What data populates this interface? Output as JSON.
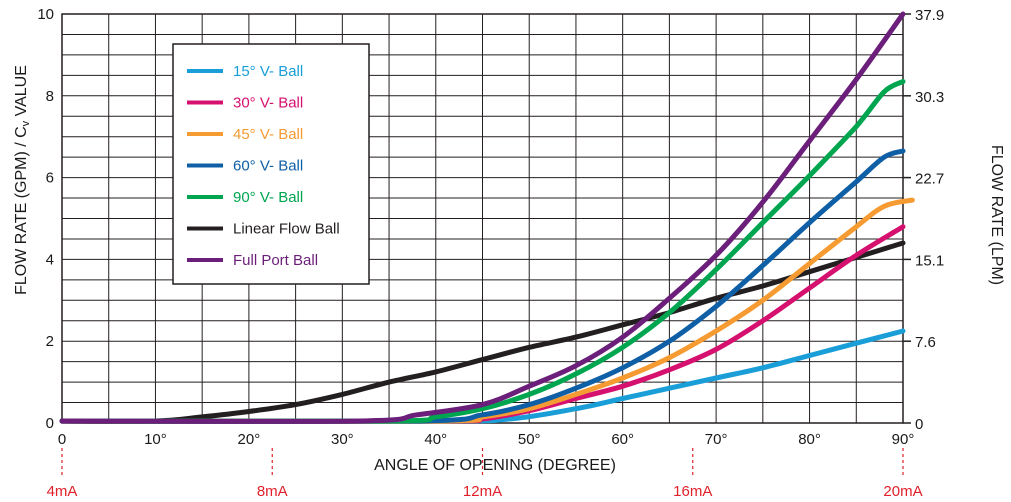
{
  "chart_data": {
    "type": "line",
    "xlabel": "ANGLE OF OPENING (DEGREE)",
    "ylabel": "FLOW RATE (GPM) / Cv VALUE",
    "ylabel_prefix": "FLOW RATE (GPM) / C",
    "ylabel_sub": "v",
    "ylabel_suffix": " VALUE",
    "y2label": "FLOW RATE (LPM)",
    "xlim": [
      0,
      90
    ],
    "ylim": [
      0,
      10
    ],
    "grid": true,
    "legend_position": "top-left",
    "x_ticks": [
      "0",
      "10°",
      "20°",
      "30°",
      "40°",
      "50°",
      "60°",
      "70°",
      "80°",
      "90°"
    ],
    "y_ticks": [
      "0",
      "2",
      "4",
      "6",
      "8",
      "10"
    ],
    "y2_ticks": [
      "0",
      "7.6",
      "15.1",
      "22.7",
      "30.3",
      "37.9"
    ],
    "y2_tick_values": [
      0,
      2,
      4,
      6,
      8,
      10
    ],
    "ma_labels": [
      {
        "label": "4mA",
        "x": 0
      },
      {
        "label": "8mA",
        "x": 22.5
      },
      {
        "label": "12mA",
        "x": 45
      },
      {
        "label": "16mA",
        "x": 67.5
      },
      {
        "label": "20mA",
        "x": 90
      }
    ],
    "series": [
      {
        "name": "15° V- Ball",
        "color": "#1a9ed8",
        "points": [
          [
            0,
            0.05
          ],
          [
            40,
            0.05
          ],
          [
            48,
            0.1
          ],
          [
            55,
            0.35
          ],
          [
            60,
            0.6
          ],
          [
            65,
            0.85
          ],
          [
            70,
            1.1
          ],
          [
            75,
            1.35
          ],
          [
            80,
            1.65
          ],
          [
            85,
            1.95
          ],
          [
            90,
            2.25
          ]
        ]
      },
      {
        "name": "30° V- Ball",
        "color": "#d6106f",
        "points": [
          [
            0,
            0.05
          ],
          [
            40,
            0.05
          ],
          [
            45,
            0.1
          ],
          [
            50,
            0.3
          ],
          [
            55,
            0.6
          ],
          [
            60,
            0.9
          ],
          [
            65,
            1.3
          ],
          [
            70,
            1.8
          ],
          [
            75,
            2.5
          ],
          [
            80,
            3.3
          ],
          [
            85,
            4.1
          ],
          [
            90,
            4.8
          ]
        ]
      },
      {
        "name": "45° V- Ball",
        "color": "#f59b32",
        "points": [
          [
            0,
            0.05
          ],
          [
            40,
            0.05
          ],
          [
            45,
            0.15
          ],
          [
            50,
            0.35
          ],
          [
            55,
            0.7
          ],
          [
            60,
            1.1
          ],
          [
            65,
            1.6
          ],
          [
            70,
            2.25
          ],
          [
            75,
            3.0
          ],
          [
            80,
            3.9
          ],
          [
            85,
            4.8
          ],
          [
            88,
            5.3
          ],
          [
            91,
            5.45
          ]
        ]
      },
      {
        "name": "60° V- Ball",
        "color": "#0f5fa6",
        "points": [
          [
            0,
            0.05
          ],
          [
            38,
            0.05
          ],
          [
            45,
            0.2
          ],
          [
            50,
            0.45
          ],
          [
            55,
            0.85
          ],
          [
            60,
            1.35
          ],
          [
            65,
            2.0
          ],
          [
            70,
            2.85
          ],
          [
            75,
            3.85
          ],
          [
            80,
            4.9
          ],
          [
            85,
            5.9
          ],
          [
            88,
            6.5
          ],
          [
            90,
            6.65
          ]
        ]
      },
      {
        "name": "90° V- Ball",
        "color": "#00a550",
        "points": [
          [
            0,
            0.05
          ],
          [
            35,
            0.05
          ],
          [
            40,
            0.15
          ],
          [
            45,
            0.35
          ],
          [
            50,
            0.7
          ],
          [
            55,
            1.2
          ],
          [
            60,
            1.85
          ],
          [
            65,
            2.7
          ],
          [
            70,
            3.75
          ],
          [
            75,
            4.9
          ],
          [
            80,
            6.05
          ],
          [
            85,
            7.25
          ],
          [
            88,
            8.1
          ],
          [
            90,
            8.35
          ]
        ]
      },
      {
        "name": "Linear Flow Ball",
        "color": "#231f20",
        "points": [
          [
            0,
            0.05
          ],
          [
            10,
            0.05
          ],
          [
            15,
            0.15
          ],
          [
            20,
            0.28
          ],
          [
            25,
            0.45
          ],
          [
            30,
            0.7
          ],
          [
            35,
            1.0
          ],
          [
            40,
            1.25
          ],
          [
            45,
            1.55
          ],
          [
            50,
            1.85
          ],
          [
            55,
            2.1
          ],
          [
            60,
            2.4
          ],
          [
            65,
            2.7
          ],
          [
            70,
            3.05
          ],
          [
            75,
            3.35
          ],
          [
            80,
            3.7
          ],
          [
            85,
            4.05
          ],
          [
            90,
            4.4
          ]
        ]
      },
      {
        "name": "Full Port Ball",
        "color": "#6b1f7a",
        "points": [
          [
            0,
            0.05
          ],
          [
            32,
            0.05
          ],
          [
            38,
            0.2
          ],
          [
            45,
            0.45
          ],
          [
            50,
            0.9
          ],
          [
            55,
            1.4
          ],
          [
            60,
            2.1
          ],
          [
            65,
            3.05
          ],
          [
            70,
            4.1
          ],
          [
            75,
            5.4
          ],
          [
            80,
            6.9
          ],
          [
            85,
            8.4
          ],
          [
            90,
            10.0
          ]
        ]
      }
    ]
  }
}
